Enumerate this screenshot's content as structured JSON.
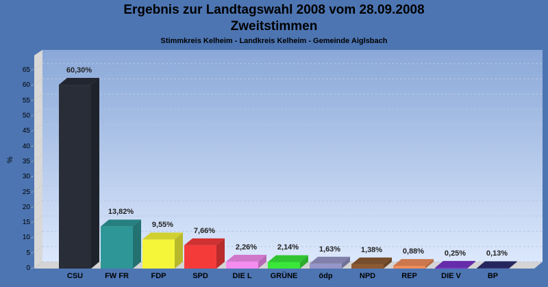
{
  "header": {
    "title": "Ergebnis zur Landtagswahl 2008 vom 28.09.2008",
    "subtitle": "Zweitstimmen",
    "caption": "Stimmkreis Kelheim - Landkreis Kelheim - Gemeinde Aiglsbach"
  },
  "chart_data": {
    "type": "bar",
    "title": "Ergebnis zur Landtagswahl 2008 vom 28.09.2008 - Zweitstimmen",
    "subtitle": "Stimmkreis Kelheim - Landkreis Kelheim - Gemeinde Aiglsbach",
    "xlabel": "",
    "ylabel": "%",
    "ylim": [
      0,
      67
    ],
    "yticks": [
      0,
      5,
      10,
      15,
      20,
      25,
      30,
      35,
      40,
      45,
      50,
      55,
      60,
      65
    ],
    "grid": true,
    "categories": [
      "CSU",
      "FW FR",
      "FDP",
      "SPD",
      "DIE L",
      "GRÜNE",
      "ödp",
      "NPD",
      "REP",
      "DIE V",
      "BP"
    ],
    "values": [
      60.3,
      13.82,
      9.55,
      7.66,
      2.26,
      2.14,
      1.63,
      1.38,
      0.88,
      0.25,
      0.13
    ],
    "labels": [
      "60,30%",
      "13,82%",
      "9,55%",
      "7,66%",
      "2,26%",
      "2,14%",
      "1,63%",
      "1,38%",
      "0,88%",
      "0,25%",
      "0,13%"
    ],
    "colors": [
      "#282d38",
      "#2e9696",
      "#f5f53a",
      "#f53a3a",
      "#f58cf0",
      "#3ae63a",
      "#9696c8",
      "#8c5a32",
      "#f08c5a",
      "#7832c8",
      "#2d2d6e"
    ]
  }
}
